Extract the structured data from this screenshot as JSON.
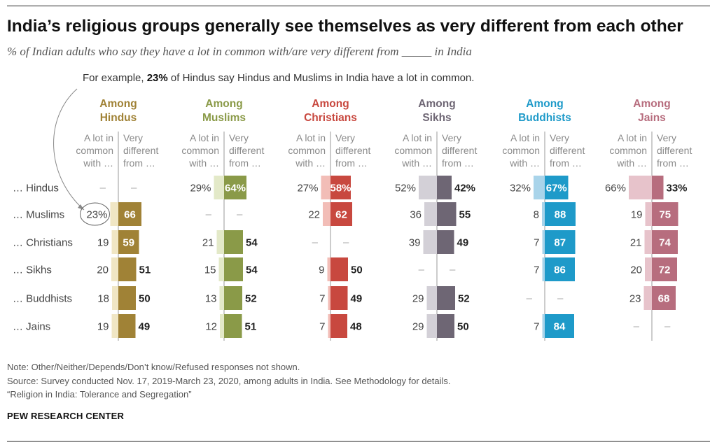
{
  "title": "India’s religious groups generally see themselves as very different from each other",
  "subtitle": "% of Indian adults who say they have a lot in common with/are very different from _____ in India",
  "example": {
    "prefix": "For example, ",
    "value": "23%",
    "suffix": " of Hindus say Hindus and Muslims in India have a lot in common."
  },
  "notes": {
    "note": "Note: Other/Neither/Depends/Don’t know/Refused responses not shown.",
    "source": "Source: Survey conducted Nov. 17, 2019-March 23, 2020, among adults in India. See Methodology for details.",
    "report": "“Religion in India: Tolerance and Segregation”"
  },
  "brand": "PEW RESEARCH CENTER",
  "chart_data": {
    "type": "bar",
    "column_headers": [
      "A lot in\ncommon\nwith …",
      "Very\ndifferent\nfrom …"
    ],
    "rows": [
      "… Hindus",
      "… Muslims",
      "… Christians",
      "… Sikhs",
      "… Buddhists",
      "… Jains"
    ],
    "missing_marker": "–",
    "panels": [
      {
        "label": "Among\nHindus",
        "color": "#a08236",
        "light": "#f0e6c4",
        "common": [
          null,
          23,
          19,
          20,
          18,
          19
        ],
        "different": [
          null,
          66,
          59,
          51,
          50,
          49
        ]
      },
      {
        "label": "Among\nMuslims",
        "color": "#8a9a48",
        "light": "#e3e9c8",
        "common": [
          29,
          null,
          21,
          15,
          13,
          12
        ],
        "different": [
          64,
          null,
          54,
          54,
          52,
          51
        ]
      },
      {
        "label": "Among\nChristians",
        "color": "#c8483f",
        "light": "#f2bdb7",
        "common": [
          27,
          22,
          null,
          9,
          7,
          7
        ],
        "different": [
          58,
          62,
          null,
          50,
          49,
          48
        ]
      },
      {
        "label": "Among\nSikhs",
        "color": "#6e6674",
        "light": "#d3d0d7",
        "common": [
          52,
          36,
          39,
          null,
          29,
          29
        ],
        "different": [
          42,
          55,
          49,
          null,
          52,
          50
        ]
      },
      {
        "label": "Among\nBuddhists",
        "color": "#1e9ac9",
        "light": "#a9d4ea",
        "common": [
          32,
          8,
          7,
          7,
          null,
          7
        ],
        "different": [
          67,
          88,
          87,
          86,
          null,
          84
        ]
      },
      {
        "label": "Among\nJains",
        "color": "#b76d7e",
        "light": "#e7c3cb",
        "common": [
          66,
          19,
          21,
          20,
          23,
          null
        ],
        "different": [
          33,
          75,
          74,
          72,
          68,
          null
        ]
      }
    ]
  }
}
